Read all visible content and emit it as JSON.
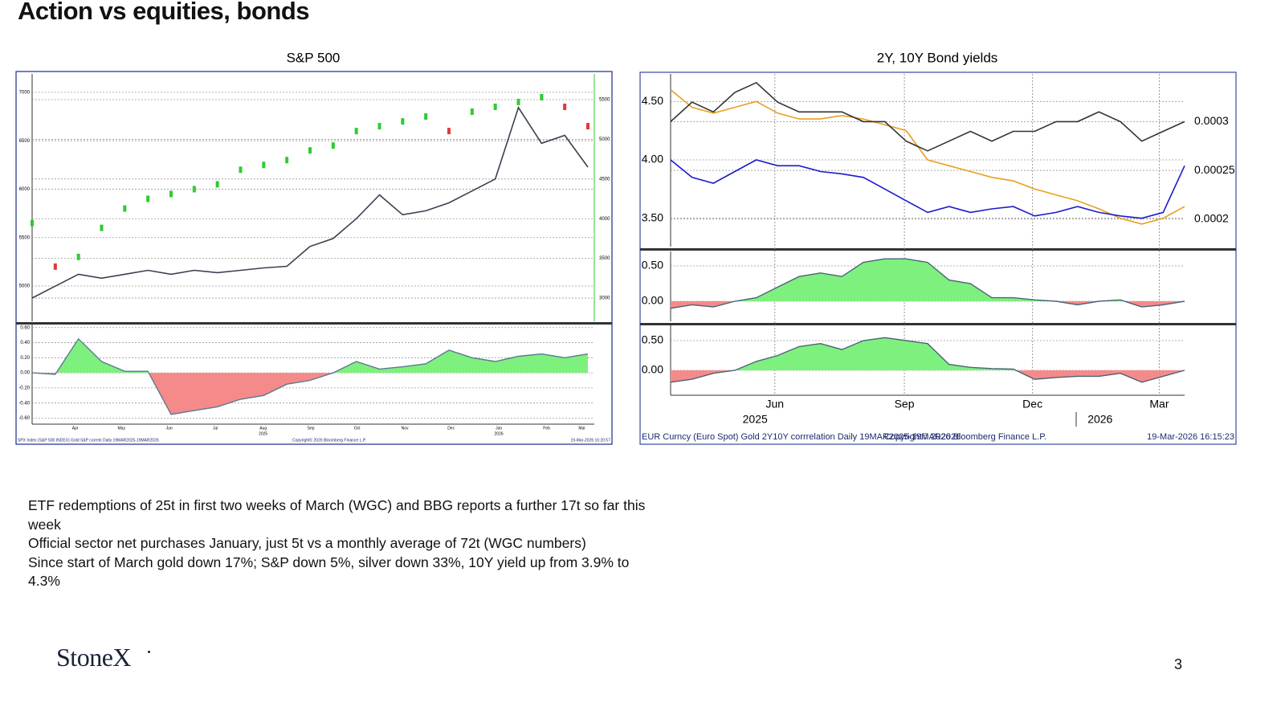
{
  "title": "Action vs equities, bonds",
  "chart_data": [
    {
      "title": "S&P 500",
      "xticks": [
        "Apr",
        "May",
        "Jun",
        "Jul",
        "Aug",
        "Sep",
        "Oct",
        "Nov",
        "Dec",
        "Jan",
        "Feb",
        "Mar"
      ],
      "years": [
        "2025",
        "2026"
      ],
      "footer": [
        "SPX Index (S&P 500 INDEX) Gold  S&P correln Daily 19MAR2025-19MAR2026",
        "Copyright© 2026 Bloomberg Finance L.P.",
        "19-Mar-2026 16:20:57"
      ],
      "grid": true,
      "panels": [
        {
          "type": "candlestick",
          "ylim": [
            4635,
            7190
          ],
          "yticks": [
            5000,
            5500,
            6000,
            6500,
            7000
          ],
          "y2lim": [
            2707,
            5824
          ],
          "y2ticks": [
            3000,
            3500,
            4000,
            4500,
            5000,
            5500
          ],
          "series": [
            {
              "type": "candlestick",
              "up_color": "#2ecc2e",
              "down_color": "#e03a3a",
              "values": [
                5650,
                5200,
                5300,
                5600,
                5800,
                5900,
                5950,
                6000,
                6050,
                6200,
                6250,
                6300,
                6400,
                6450,
                6600,
                6650,
                6700,
                6750,
                6600,
                6800,
                6850,
                6900,
                6950,
                6850,
                6650
              ]
            },
            {
              "type": "line",
              "axis": "y2",
              "color": "#3a4150",
              "values": [
                3000,
                3150,
                3300,
                3250,
                3300,
                3350,
                3300,
                3350,
                3320,
                3350,
                3380,
                3400,
                3650,
                3750,
                4000,
                4300,
                4050,
                4100,
                4200,
                4350,
                4500,
                5400,
                4950,
                5050,
                4650
              ]
            }
          ]
        },
        {
          "type": "area",
          "ylim": [
            -0.68,
            0.64
          ],
          "yticks": [
            {
              "value": -0.6,
              "label": "-0.60"
            },
            {
              "value": -0.4,
              "label": "-0.40"
            },
            {
              "value": -0.2,
              "label": "-0.20"
            },
            {
              "value": 0,
              "label": "0.00"
            },
            {
              "value": 0.2,
              "label": "0.20"
            },
            {
              "value": 0.4,
              "label": "0.40"
            },
            {
              "value": 0.6,
              "label": "0.60"
            }
          ],
          "series": [
            {
              "type": "area",
              "color": "#5a7a90",
              "positive_color": "#7ef07e",
              "negative_color": "#f58a8a",
              "values": [
                0.0,
                -0.02,
                0.45,
                0.15,
                0.02,
                0.02,
                -0.55,
                -0.5,
                -0.45,
                -0.35,
                -0.3,
                -0.15,
                -0.1,
                0.0,
                0.15,
                0.05,
                0.08,
                0.12,
                0.3,
                0.2,
                0.15,
                0.22,
                0.25,
                0.2,
                0.25
              ]
            }
          ]
        }
      ]
    },
    {
      "title": "2Y, 10Y Bond yields",
      "xticks": [
        "Jun",
        "Sep",
        "Dec",
        "Mar"
      ],
      "years": [
        "2025",
        "2026"
      ],
      "footer": [
        "EUR Curncy (Euro Spot) Gold 2Y10Y corrrelation Daily 19MAR2025-19MAR2026",
        "Copyright© 2026 Bloomberg Finance L.P.",
        "19-Mar-2026 16:15:23"
      ],
      "grid": true,
      "panels": [
        {
          "type": "line",
          "ylim": [
            3.257,
            4.736
          ],
          "yticks": [
            {
              "value": 3.5,
              "label": "3.50"
            },
            {
              "value": 4,
              "label": "4.00"
            },
            {
              "value": 4.5,
              "label": "4.50"
            }
          ],
          "y2lim": [
            0.0001717,
            0.000349
          ],
          "y2ticks": [
            0.0002,
            0.00025,
            0.0003
          ],
          "series": [
            {
              "type": "line",
              "color": "#e8a020",
              "values": [
                4.6,
                4.45,
                4.4,
                4.45,
                4.5,
                4.4,
                4.35,
                4.35,
                4.38,
                4.35,
                4.3,
                4.25,
                4.0,
                3.95,
                3.9,
                3.85,
                3.82,
                3.75,
                3.7,
                3.65,
                3.58,
                3.5,
                3.45,
                3.5,
                3.6
              ]
            },
            {
              "type": "line",
              "color": "#1a1ad0",
              "values": [
                4.0,
                3.85,
                3.8,
                3.9,
                4.0,
                3.95,
                3.95,
                3.9,
                3.88,
                3.85,
                3.75,
                3.65,
                3.55,
                3.6,
                3.55,
                3.58,
                3.6,
                3.52,
                3.55,
                3.6,
                3.55,
                3.52,
                3.5,
                3.55,
                3.95
              ]
            },
            {
              "type": "line",
              "axis": "y2",
              "color": "#333333",
              "values": [
                0.0003,
                0.00032,
                0.00031,
                0.00033,
                0.00034,
                0.00032,
                0.00031,
                0.00031,
                0.00031,
                0.0003,
                0.0003,
                0.00028,
                0.00027,
                0.00028,
                0.00029,
                0.00028,
                0.00029,
                0.00029,
                0.0003,
                0.0003,
                0.00031,
                0.0003,
                0.00028,
                0.00029,
                0.0003
              ]
            }
          ]
        },
        {
          "type": "area",
          "ylim": [
            -0.284,
            0.705
          ],
          "yticks": [
            {
              "value": 0,
              "label": "0.00"
            },
            {
              "value": 0.5,
              "label": "0.50"
            }
          ],
          "series": [
            {
              "type": "area",
              "color": "#4a6478",
              "positive_color": "#7ef07e",
              "negative_color": "#f58a8a",
              "values": [
                -0.1,
                -0.05,
                -0.08,
                0.0,
                0.05,
                0.2,
                0.35,
                0.4,
                0.35,
                0.55,
                0.6,
                0.6,
                0.55,
                0.3,
                0.25,
                0.05,
                0.05,
                0.02,
                0.0,
                -0.05,
                0.0,
                0.02,
                -0.08,
                -0.05,
                0.0
              ]
            }
          ]
        },
        {
          "type": "area",
          "ylim": [
            -0.419,
            0.757
          ],
          "yticks": [
            {
              "value": 0,
              "label": "0.00"
            },
            {
              "value": 0.5,
              "label": "0.50"
            }
          ],
          "series": [
            {
              "type": "area",
              "color": "#4a6478",
              "positive_color": "#7ef07e",
              "negative_color": "#f58a8a",
              "values": [
                -0.2,
                -0.15,
                -0.05,
                0.0,
                0.15,
                0.25,
                0.4,
                0.45,
                0.35,
                0.5,
                0.55,
                0.5,
                0.45,
                0.1,
                0.05,
                0.03,
                0.02,
                -0.15,
                -0.12,
                -0.1,
                -0.1,
                -0.05,
                -0.2,
                -0.1,
                0.0
              ]
            }
          ]
        }
      ]
    }
  ],
  "notes": [
    "ETF redemptions  of 25t in first two weeks of March (WGC) and BBG reports a further 17t so far this week",
    "Official sector net purchases January, just 5t vs a monthly average of 72t (WGC numbers)",
    "Since start of March gold down 17%; S&P down 5%, silver down 33%, 10Y yield up from 3.9% to 4.3%"
  ],
  "logo": "StoneX",
  "page_number": "3"
}
